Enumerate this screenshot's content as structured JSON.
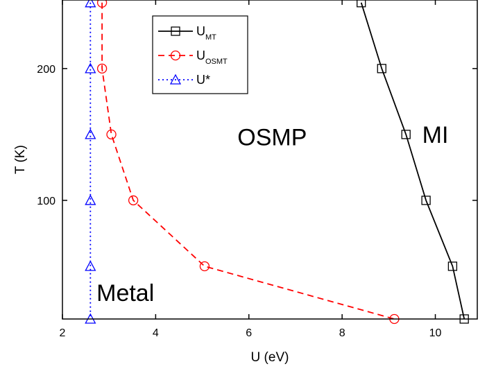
{
  "chart_data": {
    "type": "line",
    "title": "",
    "xlabel": "U (eV)",
    "ylabel": "T (K)",
    "xlim": [
      2,
      10.9
    ],
    "ylim": [
      10,
      252
    ],
    "xticks": [
      2,
      4,
      6,
      8,
      10
    ],
    "yticks": [
      100,
      200
    ],
    "xtick_labels": [
      "2",
      "4",
      "6",
      "8",
      "10"
    ],
    "ytick_labels": [
      "100",
      "200"
    ],
    "grid": false,
    "legend_position": "top-left",
    "series": [
      {
        "name": "U_MT",
        "name_main": "U",
        "name_sub": "MT",
        "color": "#000000",
        "line_style": "solid",
        "marker": "square",
        "x": [
          8.41,
          8.85,
          9.37,
          9.8,
          10.37,
          10.62
        ],
        "y": [
          250,
          200,
          150,
          100,
          50,
          10
        ]
      },
      {
        "name": "U_OSMT",
        "name_main": "U",
        "name_sub": "OSMT",
        "color": "#ff0000",
        "line_style": "dashed",
        "marker": "circle",
        "x": [
          2.85,
          2.85,
          3.05,
          3.52,
          5.05,
          9.12
        ],
        "y": [
          250,
          200,
          150,
          100,
          50,
          10
        ]
      },
      {
        "name": "U*",
        "name_main": "U*",
        "name_sub": "",
        "color": "#0000ff",
        "line_style": "dotted",
        "marker": "triangle",
        "x": [
          2.6,
          2.6,
          2.6,
          2.6,
          2.6,
          2.6
        ],
        "y": [
          250,
          200,
          150,
          100,
          50,
          10
        ]
      }
    ],
    "annotations": [
      {
        "text": "Metal",
        "x": 3.35,
        "y": 30
      },
      {
        "text": "OSMP",
        "x": 6.5,
        "y": 148
      },
      {
        "text": "MI",
        "x": 10.0,
        "y": 150
      }
    ]
  }
}
